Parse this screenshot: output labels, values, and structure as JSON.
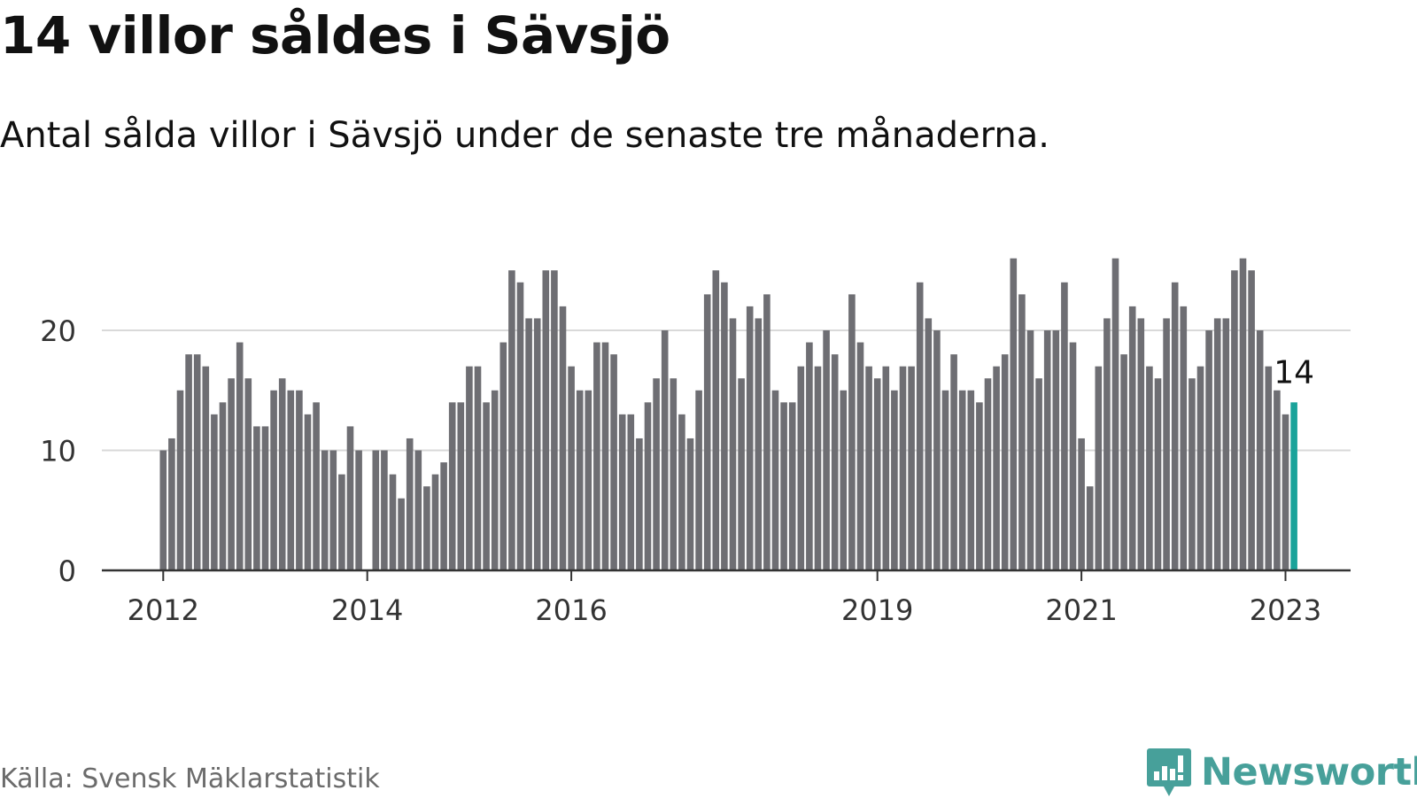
{
  "title": "14 villor såldes i Sävsjö",
  "subtitle": "Antal sålda villor i Sävsjö under de senaste tre månaderna.",
  "source": "Källa: Svensk Mäklarstatistik",
  "brand": {
    "name": "Newsworthy",
    "icon": "newsworthy-logo-icon"
  },
  "colors": {
    "bar": "#6e6e73",
    "highlight": "#1aa39a",
    "grid": "#d9d9d9",
    "axis": "#333333",
    "brand": "#47a09a"
  },
  "chart_data": {
    "type": "bar",
    "title": "14 villor såldes i Sävsjö",
    "xlabel": "",
    "ylabel": "",
    "ylim": [
      0,
      27
    ],
    "yticks": [
      0,
      10,
      20
    ],
    "grid": true,
    "start": "2012-01",
    "values": [
      10,
      11,
      15,
      18,
      18,
      17,
      13,
      14,
      16,
      19,
      16,
      12,
      12,
      15,
      16,
      15,
      15,
      13,
      14,
      10,
      10,
      8,
      12,
      10,
      0,
      10,
      10,
      8,
      6,
      11,
      10,
      7,
      8,
      9,
      14,
      14,
      17,
      17,
      14,
      15,
      19,
      25,
      24,
      21,
      21,
      25,
      25,
      22,
      17,
      15,
      15,
      19,
      19,
      18,
      13,
      13,
      11,
      14,
      16,
      20,
      16,
      13,
      11,
      15,
      23,
      25,
      24,
      21,
      16,
      22,
      21,
      23,
      15,
      14,
      14,
      17,
      19,
      17,
      20,
      18,
      15,
      23,
      19,
      17,
      16,
      17,
      15,
      17,
      17,
      24,
      21,
      20,
      15,
      18,
      15,
      15,
      14,
      16,
      17,
      18,
      26,
      23,
      20,
      16,
      20,
      20,
      24,
      19,
      11,
      7,
      17,
      21,
      26,
      18,
      22,
      21,
      17,
      16,
      21,
      24,
      22,
      16,
      17,
      20,
      21,
      21,
      25,
      26,
      25,
      20,
      17,
      15,
      13,
      14
    ],
    "highlight_last": true,
    "value_label": "14",
    "xtick_labels": [
      "2012",
      "2014",
      "2016",
      "2019",
      "2021",
      "2023"
    ],
    "xtick_index": [
      0,
      24,
      48,
      84,
      108,
      132
    ]
  }
}
